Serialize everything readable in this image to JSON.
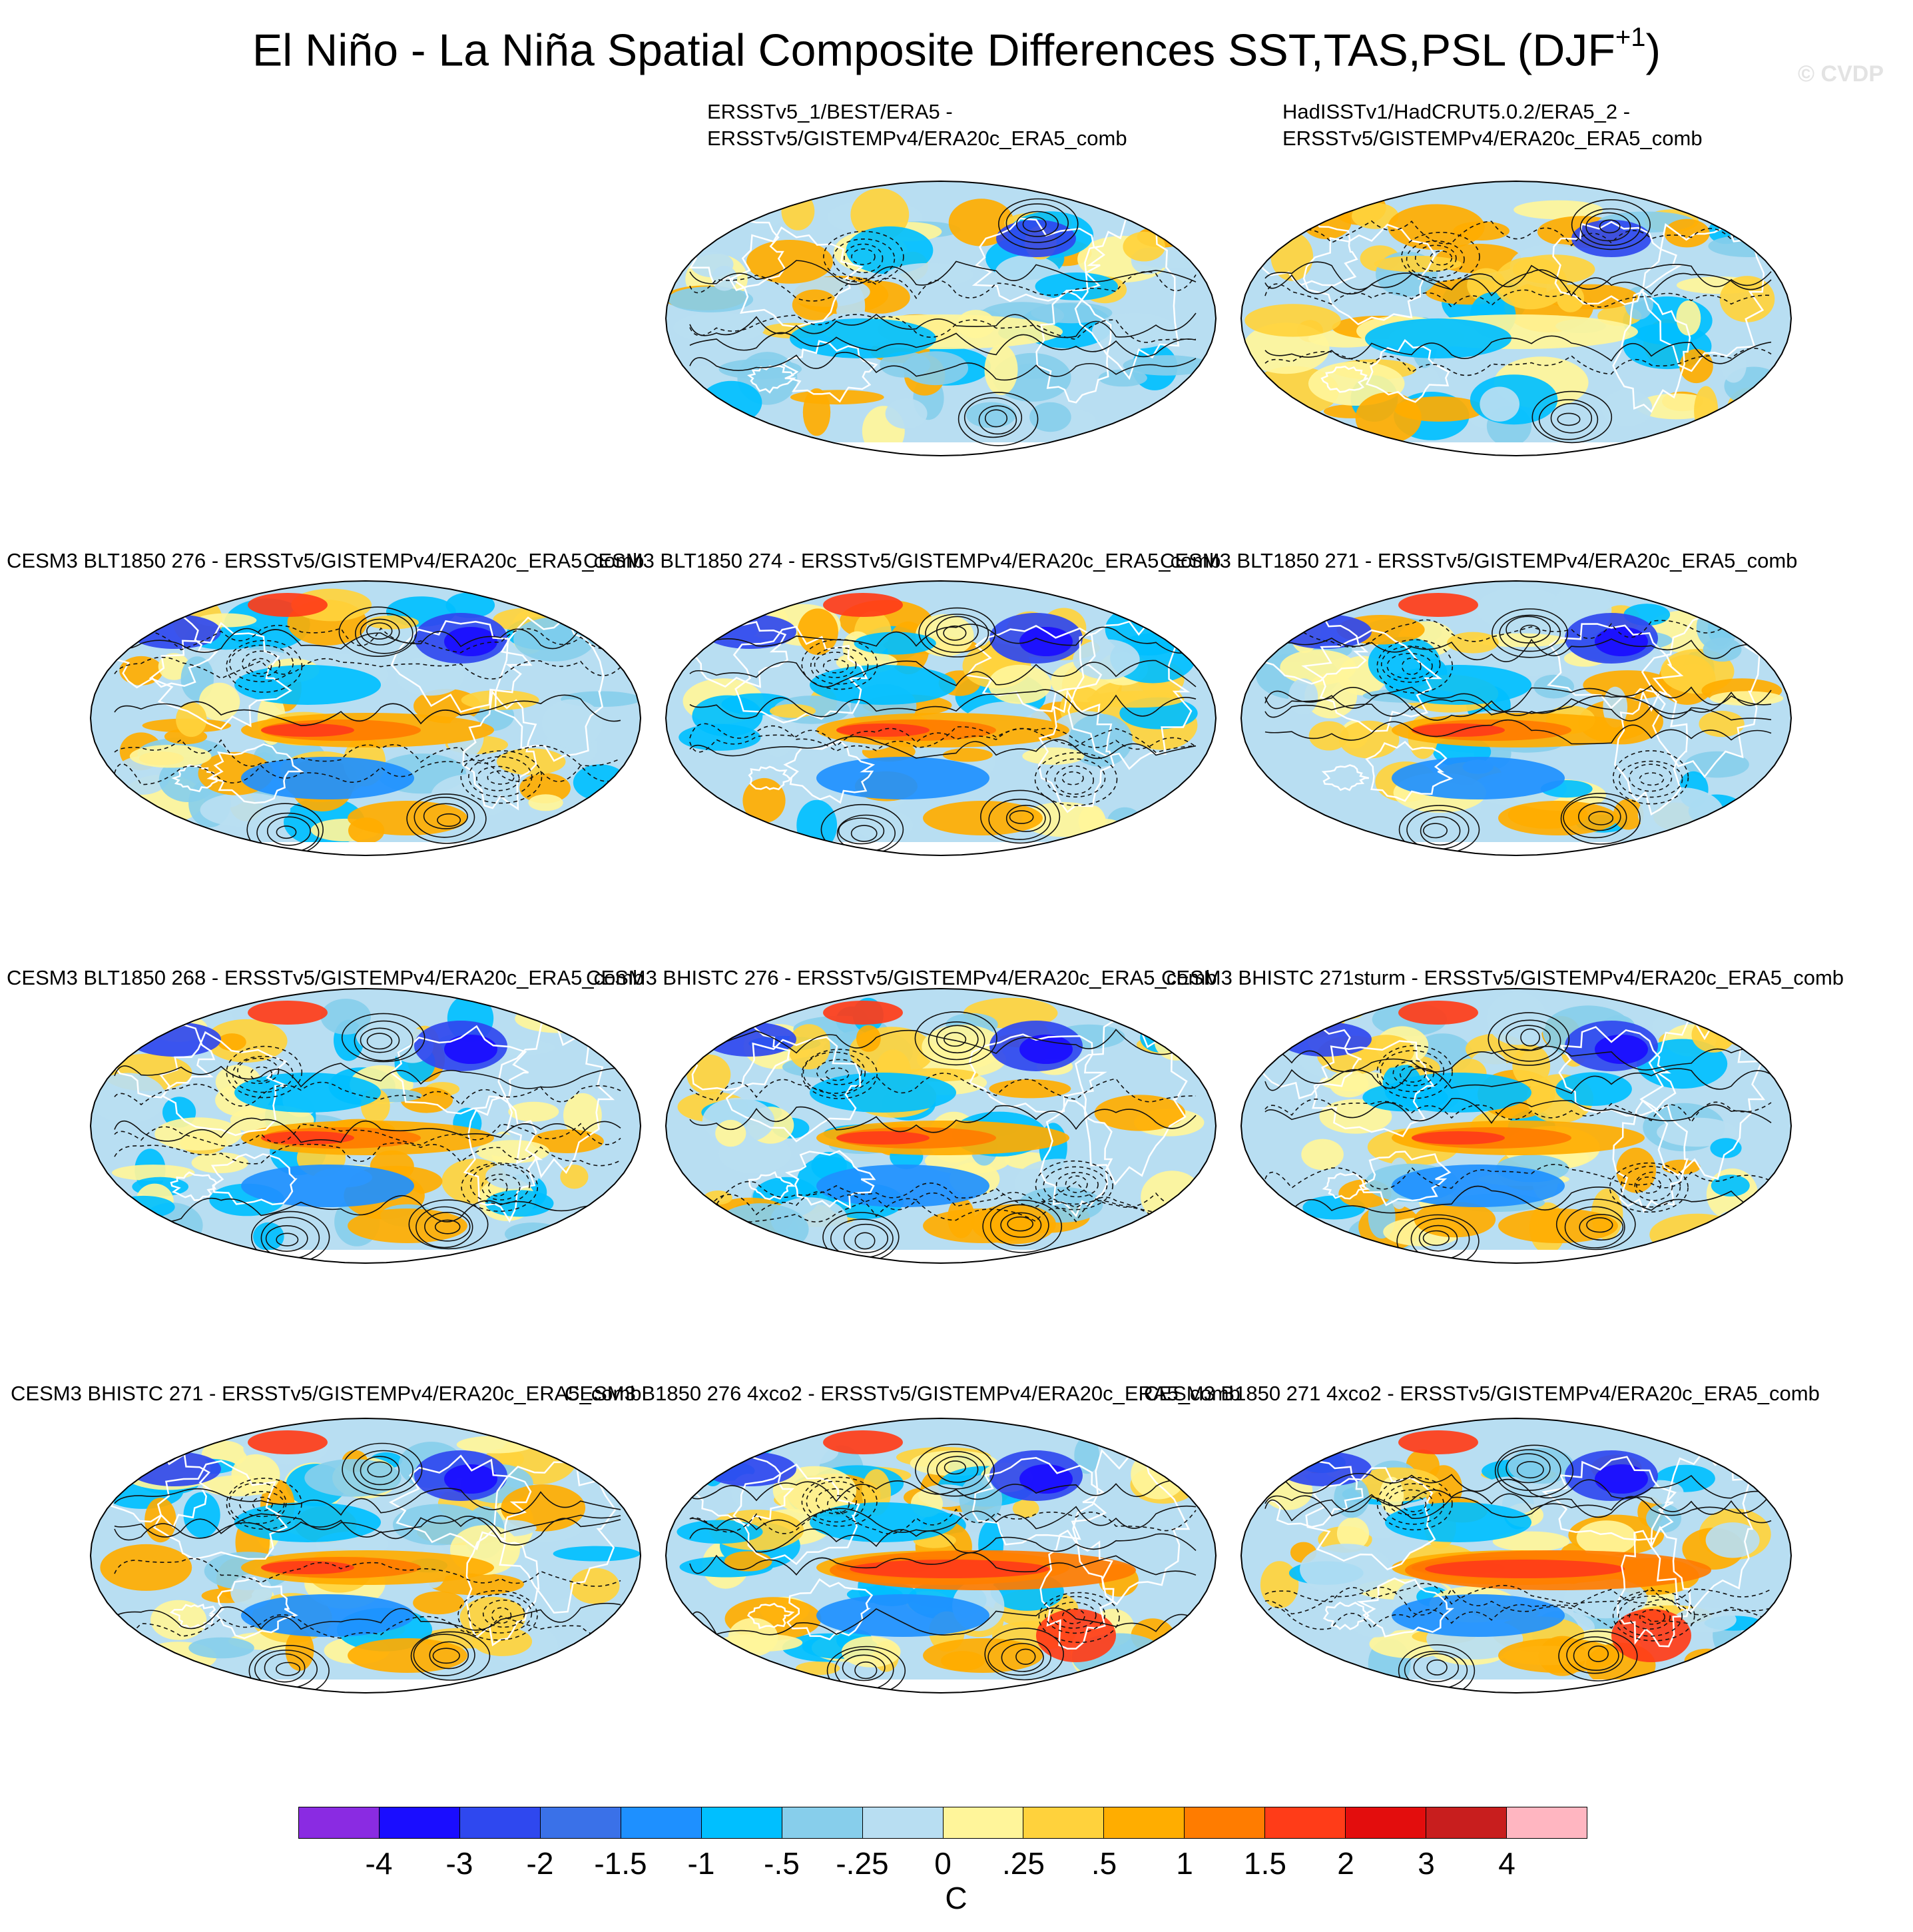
{
  "title": {
    "main": "El Niño - La Niña Spatial Composite Differences SST,TAS,PSL (DJF",
    "superscript": "+1",
    "close": ")"
  },
  "copyright": "© CVDP",
  "panels": [
    {
      "row": 0,
      "col": 1,
      "label": [
        "ERSSTv5_1/BEST/ERA5 -",
        "ERSSTv5/GISTEMPv4/ERA20c_ERA5_comb"
      ],
      "pattern": "obs1"
    },
    {
      "row": 0,
      "col": 2,
      "label": [
        "HadISSTv1/HadCRUT5.0.2/ERA5_2 -",
        "ERSSTv5/GISTEMPv4/ERA20c_ERA5_comb"
      ],
      "pattern": "obs2"
    },
    {
      "row": 1,
      "col": 0,
      "label": [
        "CESM3 BLT1850 276 - ERSSTv5/GISTEMPv4/ERA20c_ERA5_comb"
      ],
      "pattern": "model"
    },
    {
      "row": 1,
      "col": 1,
      "label": [
        "CESM3 BLT1850 274 - ERSSTv5/GISTEMPv4/ERA20c_ERA5_comb"
      ],
      "pattern": "model"
    },
    {
      "row": 1,
      "col": 2,
      "label": [
        "CESM3 BLT1850 271 - ERSSTv5/GISTEMPv4/ERA20c_ERA5_comb"
      ],
      "pattern": "model"
    },
    {
      "row": 2,
      "col": 0,
      "label": [
        "CESM3 BLT1850 268 - ERSSTv5/GISTEMPv4/ERA20c_ERA5_comb"
      ],
      "pattern": "model"
    },
    {
      "row": 2,
      "col": 1,
      "label": [
        "CESM3 BHISTC 276 - ERSSTv5/GISTEMPv4/ERA20c_ERA5_comb"
      ],
      "pattern": "model"
    },
    {
      "row": 2,
      "col": 2,
      "label": [
        "CESM3 BHISTC 271sturm - ERSSTv5/GISTEMPv4/ERA20c_ERA5_comb"
      ],
      "pattern": "model"
    },
    {
      "row": 3,
      "col": 0,
      "label": [
        "CESM3 BHISTC 271 - ERSSTv5/GISTEMPv4/ERA20c_ERA5_comb"
      ],
      "pattern": "model"
    },
    {
      "row": 3,
      "col": 1,
      "label": [
        "CESM3 B1850 276 4xco2 - ERSSTv5/GISTEMPv4/ERA20c_ERA5_comb"
      ],
      "pattern": "warm"
    },
    {
      "row": 3,
      "col": 2,
      "label": [
        "CESM3 B1850 271 4xco2 - ERSSTv5/GISTEMPv4/ERA20c_ERA5_comb"
      ],
      "pattern": "warm"
    }
  ],
  "chart_data": {
    "type": "heatmap",
    "projection": "robinson",
    "variable": "SST,TAS,PSL",
    "season": "DJF+1",
    "units": "C",
    "colorbar": {
      "levels": [
        "-4",
        "-3",
        "-2",
        "-1.5",
        "-1",
        "-.5",
        "-.25",
        "0",
        ".25",
        ".5",
        "1",
        "1.5",
        "2",
        "3",
        "4"
      ],
      "colors": [
        "#8a2be2",
        "#1a0dff",
        "#2f48ef",
        "#3a71e8",
        "#1e90ff",
        "#00bfff",
        "#87ceeb",
        "#b8def2",
        "#fff59a",
        "#ffd23c",
        "#ffad00",
        "#ff7c00",
        "#ff3c18",
        "#e30d0d",
        "#c81e1e",
        "#ffb6c1"
      ]
    },
    "contours": "PSL: solid positive, dashed negative"
  }
}
